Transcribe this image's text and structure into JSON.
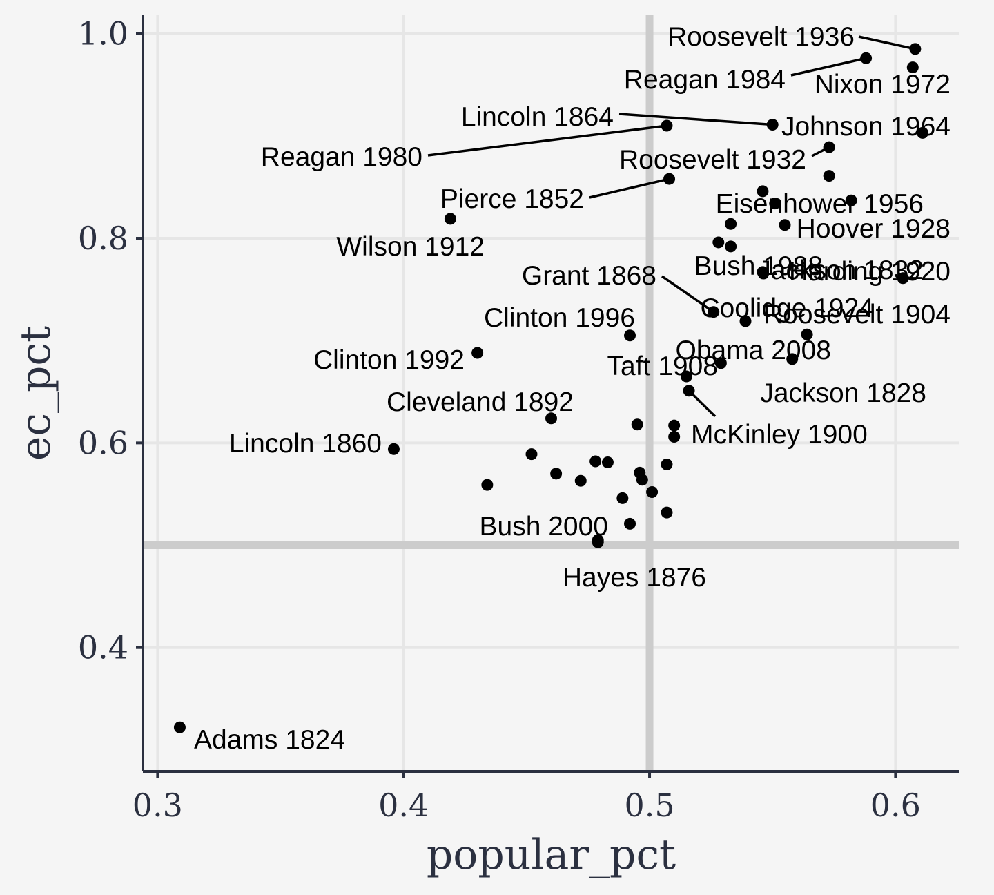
{
  "chart_data": {
    "type": "scatter",
    "xlabel": "popular_pct",
    "ylabel": "ec_pct",
    "xlim": [
      0.294,
      0.626
    ],
    "ylim": [
      0.279,
      1.018
    ],
    "xticks": [
      0.3,
      0.4,
      0.5,
      0.6
    ],
    "yticks": [
      0.4,
      0.6,
      0.8,
      1.0
    ],
    "xtick_labels": [
      "0.3",
      "0.4",
      "0.5",
      "0.6"
    ],
    "ytick_labels": [
      "0.4",
      "0.6",
      "0.8",
      "1.0"
    ],
    "grid": true,
    "reference_lines": {
      "x": 0.5,
      "y": 0.5
    },
    "point_color": "#000000",
    "reference_line_color": "#cccccc",
    "points": [
      {
        "x": 0.309,
        "y": 0.322
      },
      {
        "x": 0.396,
        "y": 0.594
      },
      {
        "x": 0.419,
        "y": 0.819
      },
      {
        "x": 0.43,
        "y": 0.688
      },
      {
        "x": 0.434,
        "y": 0.559
      },
      {
        "x": 0.452,
        "y": 0.589
      },
      {
        "x": 0.46,
        "y": 0.624
      },
      {
        "x": 0.462,
        "y": 0.57
      },
      {
        "x": 0.472,
        "y": 0.563
      },
      {
        "x": 0.478,
        "y": 0.582
      },
      {
        "x": 0.479,
        "y": 0.503
      },
      {
        "x": 0.479,
        "y": 0.505
      },
      {
        "x": 0.483,
        "y": 0.581
      },
      {
        "x": 0.489,
        "y": 0.546
      },
      {
        "x": 0.492,
        "y": 0.705
      },
      {
        "x": 0.492,
        "y": 0.521
      },
      {
        "x": 0.495,
        "y": 0.618
      },
      {
        "x": 0.496,
        "y": 0.571
      },
      {
        "x": 0.497,
        "y": 0.564
      },
      {
        "x": 0.501,
        "y": 0.552
      },
      {
        "x": 0.507,
        "y": 0.532
      },
      {
        "x": 0.507,
        "y": 0.579
      },
      {
        "x": 0.507,
        "y": 0.91
      },
      {
        "x": 0.508,
        "y": 0.858
      },
      {
        "x": 0.51,
        "y": 0.617
      },
      {
        "x": 0.51,
        "y": 0.606
      },
      {
        "x": 0.515,
        "y": 0.665
      },
      {
        "x": 0.516,
        "y": 0.651
      },
      {
        "x": 0.526,
        "y": 0.728
      },
      {
        "x": 0.528,
        "y": 0.796
      },
      {
        "x": 0.529,
        "y": 0.678
      },
      {
        "x": 0.533,
        "y": 0.814
      },
      {
        "x": 0.533,
        "y": 0.792
      },
      {
        "x": 0.539,
        "y": 0.719
      },
      {
        "x": 0.546,
        "y": 0.767
      },
      {
        "x": 0.546,
        "y": 0.846
      },
      {
        "x": 0.55,
        "y": 0.911
      },
      {
        "x": 0.551,
        "y": 0.834
      },
      {
        "x": 0.555,
        "y": 0.813
      },
      {
        "x": 0.558,
        "y": 0.682
      },
      {
        "x": 0.564,
        "y": 0.706
      },
      {
        "x": 0.573,
        "y": 0.889
      },
      {
        "x": 0.573,
        "y": 0.861
      },
      {
        "x": 0.582,
        "y": 0.837
      },
      {
        "x": 0.588,
        "y": 0.976
      },
      {
        "x": 0.603,
        "y": 0.761
      },
      {
        "x": 0.607,
        "y": 0.967
      },
      {
        "x": 0.608,
        "y": 0.985
      },
      {
        "x": 0.611,
        "y": 0.903
      }
    ],
    "labels": [
      {
        "text": "Roosevelt 1936",
        "x": 0.608,
        "y": 0.985
      },
      {
        "text": "Reagan 1984",
        "x": 0.588,
        "y": 0.976
      },
      {
        "text": "Nixon 1972",
        "x": 0.607,
        "y": 0.967
      },
      {
        "text": "Lincoln 1864",
        "x": 0.55,
        "y": 0.911
      },
      {
        "text": "Johnson 1964",
        "x": 0.611,
        "y": 0.903
      },
      {
        "text": "Reagan 1980",
        "x": 0.507,
        "y": 0.91
      },
      {
        "text": "Roosevelt 1932",
        "x": 0.573,
        "y": 0.889
      },
      {
        "text": "Pierce 1852",
        "x": 0.508,
        "y": 0.858
      },
      {
        "text": "Eisenhower 1956",
        "x": 0.551,
        "y": 0.834
      },
      {
        "text": "Hoover 1928",
        "x": 0.555,
        "y": 0.813
      },
      {
        "text": "Wilson 1912",
        "x": 0.419,
        "y": 0.819
      },
      {
        "text": "Bush 1988",
        "x": 0.533,
        "y": 0.792
      },
      {
        "text": "Jackson 1832",
        "x": 0.546,
        "y": 0.767
      },
      {
        "text": "Harding 1920",
        "x": 0.603,
        "y": 0.761
      },
      {
        "text": "Grant 1868",
        "x": 0.526,
        "y": 0.728
      },
      {
        "text": "Coolidge 1924",
        "x": 0.539,
        "y": 0.719
      },
      {
        "text": "Roosevelt 1904",
        "x": 0.564,
        "y": 0.706
      },
      {
        "text": "Clinton 1996",
        "x": 0.492,
        "y": 0.705
      },
      {
        "text": "Obama 2008",
        "x": 0.558,
        "y": 0.682
      },
      {
        "text": "Clinton 1992",
        "x": 0.43,
        "y": 0.688
      },
      {
        "text": "Taft 1908",
        "x": 0.529,
        "y": 0.678
      },
      {
        "text": "Jackson 1828",
        "x": 0.558,
        "y": 0.682
      },
      {
        "text": "Cleveland 1892",
        "x": 0.46,
        "y": 0.624
      },
      {
        "text": "McKinley 1900",
        "x": 0.516,
        "y": 0.651
      },
      {
        "text": "Lincoln 1860",
        "x": 0.396,
        "y": 0.594
      },
      {
        "text": "Bush 2000",
        "x": 0.479,
        "y": 0.503
      },
      {
        "text": "Hayes 1876",
        "x": 0.479,
        "y": 0.505
      },
      {
        "text": "Adams 1824",
        "x": 0.309,
        "y": 0.322
      }
    ]
  }
}
